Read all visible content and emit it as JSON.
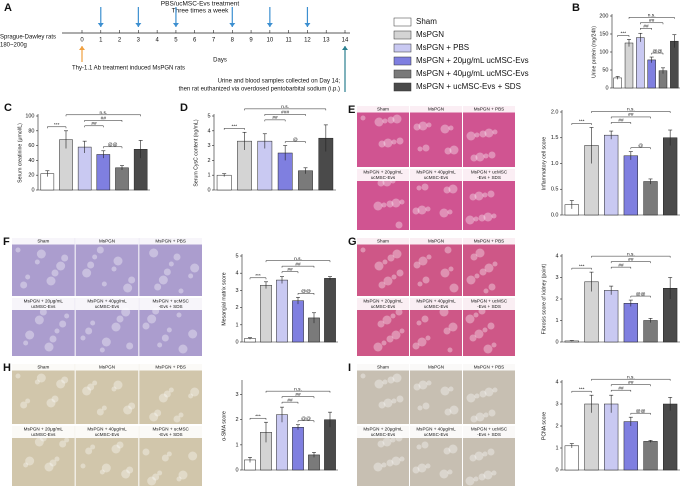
{
  "legend": [
    {
      "name": "Sham",
      "color": "#ffffff"
    },
    {
      "name": "MsPGN",
      "color": "#d4d4d4"
    },
    {
      "name": "MsPGN + PBS",
      "color": "#c9c9f2"
    },
    {
      "name": "MsPGN + 20μg/mL ucMSC-Evs",
      "color": "#7f7fe0"
    },
    {
      "name": "MsPGN + 40μg/mL ucMSC-Evs",
      "color": "#7a7a7a"
    },
    {
      "name": "MsPGN + ucMSC-Evs + SDS",
      "color": "#4a4a4a"
    }
  ],
  "timeline": {
    "letter": "A",
    "subject": "Sprague-Dawley rats",
    "weight": "180~200g",
    "treatment": "PBS/ucMSC-Evs treatment",
    "frequency": "Three times a week",
    "days": [
      0,
      1,
      2,
      3,
      4,
      5,
      6,
      7,
      8,
      9,
      10,
      11,
      12,
      13,
      14
    ],
    "axis_label": "Days",
    "treatment_days": [
      1,
      3,
      5,
      8,
      10,
      12
    ],
    "induction_day": 0,
    "sampling_day": 14,
    "induction": "Thy-1.1 Ab treatment induced MsPGN rats",
    "sampling": [
      "Urine and blood samples collected on Day 14;",
      "then rat euthanized via overdosed pentobarbital sodium (i.p.)"
    ]
  },
  "image_panels": [
    {
      "letter": "E",
      "stain": "#c8367e"
    },
    {
      "letter": "F",
      "stain": "#9c8cc6"
    },
    {
      "letter": "G",
      "stain": "#c63a72"
    },
    {
      "letter": "H",
      "stain": "#c9bc9c"
    },
    {
      "letter": "I",
      "stain": "#bdb4a4"
    }
  ],
  "image_labels": [
    [
      "Sham"
    ],
    [
      "MsPGN"
    ],
    [
      "MsPGN + PBS"
    ],
    [
      "MsPGN + 20μg/mL",
      "ucMSC-Evs"
    ],
    [
      "MsPGN + 40μg/mL",
      "ucMSC-Evs"
    ],
    [
      "MsPGN + ucMSC",
      "-Evs + SDS"
    ]
  ],
  "chart_data": [
    {
      "type": "bar",
      "letter": "B",
      "ylabel": "Urine protein (mg/24h)",
      "values": [
        28,
        125,
        140,
        78,
        48,
        130
      ],
      "errors": [
        4,
        10,
        12,
        8,
        8,
        18
      ],
      "ylim": [
        0,
        200
      ],
      "yticks": [
        0,
        50,
        100,
        150,
        200
      ],
      "annotations": [
        "***",
        "##",
        "##",
        "@@",
        "n.s."
      ]
    },
    {
      "type": "bar",
      "letter": "C",
      "ylabel": "Serum creatinine (μmol/L)",
      "values": [
        22,
        68,
        58,
        48,
        30,
        55
      ],
      "errors": [
        4,
        12,
        8,
        5,
        3,
        12
      ],
      "ylim": [
        0,
        100
      ],
      "yticks": [
        0,
        20,
        40,
        60,
        80,
        100
      ],
      "annotations": [
        "***",
        "##",
        "##",
        "@@",
        "n.s."
      ]
    },
    {
      "type": "bar",
      "letter": "D",
      "ylabel": "Serum CysC content (ng/mL)",
      "values": [
        1.0,
        3.3,
        3.3,
        2.5,
        1.3,
        3.5
      ],
      "errors": [
        0.1,
        0.6,
        0.5,
        0.5,
        0.2,
        0.9
      ],
      "ylim": [
        0,
        5
      ],
      "yticks": [
        0,
        1,
        2,
        3,
        4,
        5
      ],
      "annotations": [
        "***",
        "##",
        "###",
        "@",
        "n.s."
      ]
    },
    {
      "type": "bar",
      "ylabel": "Inflammatory cell score",
      "values": [
        0.2,
        1.35,
        1.55,
        1.15,
        0.65,
        1.5
      ],
      "errors": [
        0.08,
        0.35,
        0.08,
        0.08,
        0.05,
        0.15
      ],
      "ylim": [
        0,
        2
      ],
      "yticks": [
        {
          "value": 0,
          "label": "0.0"
        },
        0.5,
        {
          "value": 1,
          "label": "1.0"
        },
        1.5,
        {
          "value": 2,
          "label": "2.0"
        }
      ],
      "annotations": [
        "***",
        "##",
        "##",
        "@",
        "n.s."
      ]
    },
    {
      "type": "bar",
      "ylabel": "Mesangial matrix score",
      "values": [
        0.2,
        3.3,
        3.6,
        2.4,
        1.4,
        3.7
      ],
      "errors": [
        0.05,
        0.2,
        0.2,
        0.2,
        0.3,
        0.1
      ],
      "ylim": [
        0,
        5
      ],
      "yticks": [
        0,
        1,
        2,
        3,
        4,
        5
      ],
      "annotations": [
        "***",
        "##",
        "##",
        "@@",
        "n.s."
      ]
    },
    {
      "type": "bar",
      "ylabel": "Fibrosis score of kidney (point)",
      "values": [
        0.05,
        2.8,
        2.4,
        1.8,
        1.0,
        2.5
      ],
      "errors": [
        0.02,
        0.45,
        0.2,
        0.15,
        0.1,
        0.5
      ],
      "ylim": [
        0,
        4
      ],
      "yticks": [
        0,
        1,
        2,
        3,
        4
      ],
      "annotations": [
        "***",
        "##",
        "##",
        "@@",
        "n.s."
      ]
    },
    {
      "type": "bar",
      "ylabel": "α-SMA score",
      "values": [
        0.4,
        1.5,
        2.2,
        1.7,
        0.6,
        2.0
      ],
      "errors": [
        0.1,
        0.4,
        0.3,
        0.1,
        0.1,
        0.3
      ],
      "ylim": [
        0,
        3.5
      ],
      "yticks": [
        0,
        1,
        2,
        3
      ],
      "annotations": [
        "***",
        "##",
        "##",
        "@@",
        "n.s."
      ]
    },
    {
      "type": "bar",
      "ylabel": "PCNA score",
      "values": [
        1.1,
        3.0,
        3.0,
        2.2,
        1.3,
        3.0
      ],
      "errors": [
        0.1,
        0.4,
        0.4,
        0.2,
        0.05,
        0.3
      ],
      "ylim": [
        0,
        4
      ],
      "yticks": [
        0,
        1,
        2,
        3,
        4
      ],
      "annotations": [
        "***",
        "##",
        "##",
        "@@",
        "n.s."
      ]
    }
  ]
}
